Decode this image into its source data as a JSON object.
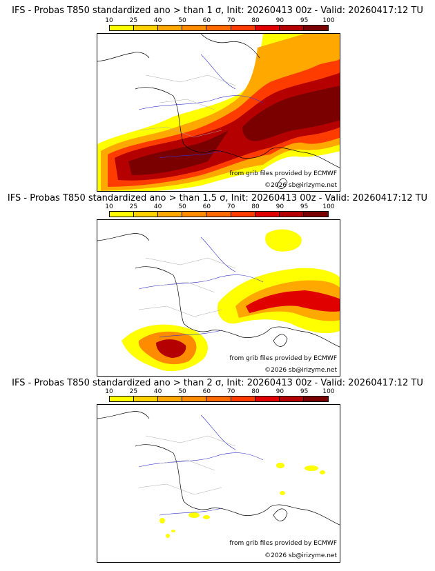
{
  "legend": {
    "ticks": [
      "10",
      "25",
      "40",
      "50",
      "60",
      "70",
      "80",
      "90",
      "95",
      "100"
    ],
    "colors": [
      "#ffff00",
      "#ffd200",
      "#ffa800",
      "#ff8c00",
      "#ff6a00",
      "#ff3c00",
      "#e10000",
      "#b40000",
      "#7a0000"
    ]
  },
  "panels": [
    {
      "title": "IFS - Probas T850  standardized ano > than 1 σ, Init: 20260413 00z - Valid: 20260417:12 TU",
      "credit_grib": "from grib files provided by ECMWF",
      "credit_copy": "©2026 sb@irizyme.net"
    },
    {
      "title": "IFS - Probas T850  standardized ano > than 1.5 σ, Init: 20260413 00z - Valid: 20260417:12 TU",
      "credit_grib": "from grib files provided by ECMWF",
      "credit_copy": "©2026 sb@irizyme.net"
    },
    {
      "title": "IFS - Probas T850  standardized ano > than 2 σ, Init: 20260413 00z - Valid: 20260417:12 TU",
      "credit_grib": "from grib files provided by ECMWF",
      "credit_copy": "©2026 sb@irizyme.net"
    }
  ]
}
